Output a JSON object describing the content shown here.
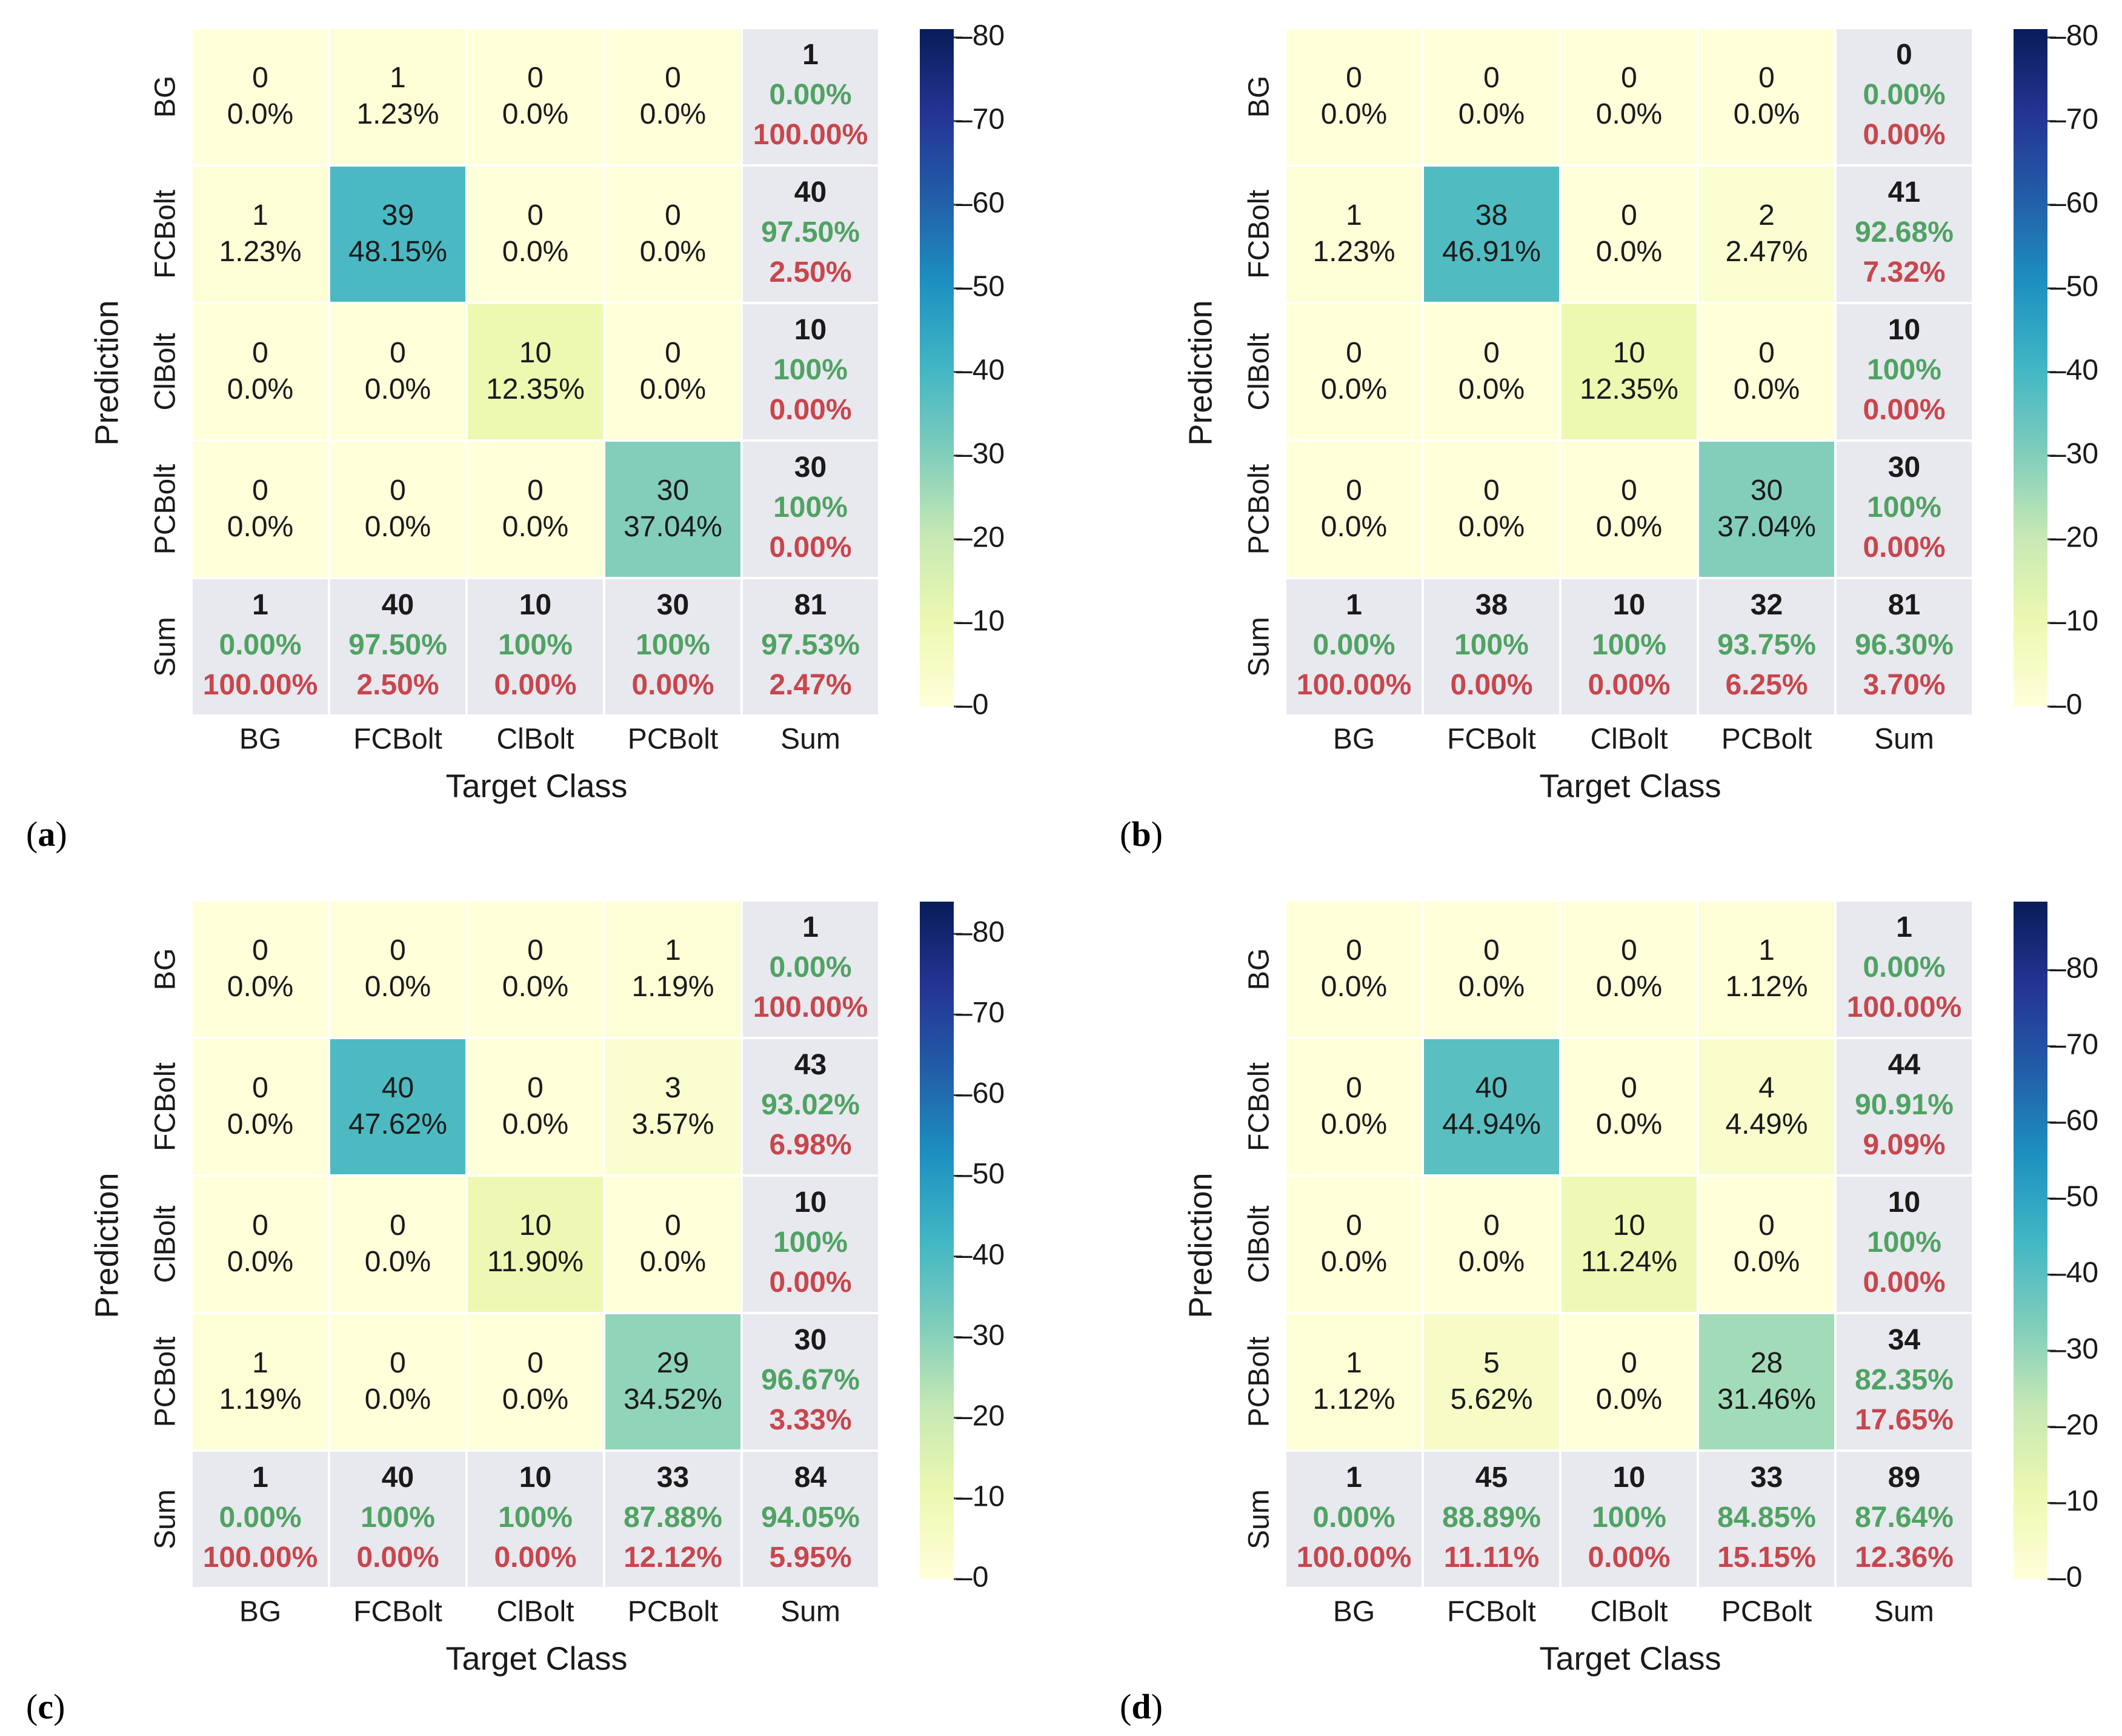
{
  "figure_kind": "confusion-matrix-grid",
  "colors": {
    "bold_count": "#1a1a1a",
    "cell_text": "#1a1a1a",
    "green": "#4fa362",
    "red": "#c8464c",
    "summary_bg": "#e8e8ef",
    "gridline": "#ffffff"
  },
  "colormap": "YlGnBu",
  "chart_data": [
    {
      "type": "heatmap",
      "panel_label": "(a)",
      "panel_letter": "a",
      "xlabel": "Target Class",
      "ylabel": "Prediction",
      "classes": [
        "BG",
        "FCBolt",
        "ClBolt",
        "PCBolt"
      ],
      "sum_label": "Sum",
      "counts": [
        [
          0,
          1,
          0,
          0
        ],
        [
          1,
          39,
          0,
          0
        ],
        [
          0,
          0,
          10,
          0
        ],
        [
          0,
          0,
          0,
          30
        ]
      ],
      "pcts": [
        [
          "0.0%",
          "1.23%",
          "0.0%",
          "0.0%"
        ],
        [
          "1.23%",
          "48.15%",
          "0.0%",
          "0.0%"
        ],
        [
          "0.0%",
          "0.0%",
          "12.35%",
          "0.0%"
        ],
        [
          "0.0%",
          "0.0%",
          "0.0%",
          "37.04%"
        ]
      ],
      "row_sums": [
        {
          "count": 1,
          "green": "0.00%",
          "red": "100.00%"
        },
        {
          "count": 40,
          "green": "97.50%",
          "red": "2.50%"
        },
        {
          "count": 10,
          "green": "100%",
          "red": "0.00%"
        },
        {
          "count": 30,
          "green": "100%",
          "red": "0.00%"
        }
      ],
      "col_sums": [
        {
          "count": 1,
          "green": "0.00%",
          "red": "100.00%"
        },
        {
          "count": 40,
          "green": "97.50%",
          "red": "2.50%"
        },
        {
          "count": 10,
          "green": "100%",
          "red": "0.00%"
        },
        {
          "count": 30,
          "green": "100%",
          "red": "0.00%"
        }
      ],
      "total": {
        "count": 81,
        "green": "97.53%",
        "red": "2.47%"
      },
      "colorbar": {
        "min": 0,
        "max": 81,
        "ticks": [
          0,
          10,
          20,
          30,
          40,
          50,
          60,
          70,
          80
        ]
      }
    },
    {
      "type": "heatmap",
      "panel_label": "(b)",
      "panel_letter": "b",
      "xlabel": "Target Class",
      "ylabel": "Prediction",
      "classes": [
        "BG",
        "FCBolt",
        "ClBolt",
        "PCBolt"
      ],
      "sum_label": "Sum",
      "counts": [
        [
          0,
          0,
          0,
          0
        ],
        [
          1,
          38,
          0,
          2
        ],
        [
          0,
          0,
          10,
          0
        ],
        [
          0,
          0,
          0,
          30
        ]
      ],
      "pcts": [
        [
          "0.0%",
          "0.0%",
          "0.0%",
          "0.0%"
        ],
        [
          "1.23%",
          "46.91%",
          "0.0%",
          "2.47%"
        ],
        [
          "0.0%",
          "0.0%",
          "12.35%",
          "0.0%"
        ],
        [
          "0.0%",
          "0.0%",
          "0.0%",
          "37.04%"
        ]
      ],
      "row_sums": [
        {
          "count": 0,
          "green": "0.00%",
          "red": "0.00%"
        },
        {
          "count": 41,
          "green": "92.68%",
          "red": "7.32%"
        },
        {
          "count": 10,
          "green": "100%",
          "red": "0.00%"
        },
        {
          "count": 30,
          "green": "100%",
          "red": "0.00%"
        }
      ],
      "col_sums": [
        {
          "count": 1,
          "green": "0.00%",
          "red": "100.00%"
        },
        {
          "count": 38,
          "green": "100%",
          "red": "0.00%"
        },
        {
          "count": 10,
          "green": "100%",
          "red": "0.00%"
        },
        {
          "count": 32,
          "green": "93.75%",
          "red": "6.25%"
        }
      ],
      "total": {
        "count": 81,
        "green": "96.30%",
        "red": "3.70%"
      },
      "colorbar": {
        "min": 0,
        "max": 81,
        "ticks": [
          0,
          10,
          20,
          30,
          40,
          50,
          60,
          70,
          80
        ]
      }
    },
    {
      "type": "heatmap",
      "panel_label": "(c)",
      "panel_letter": "c",
      "xlabel": "Target Class",
      "ylabel": "Prediction",
      "classes": [
        "BG",
        "FCBolt",
        "ClBolt",
        "PCBolt"
      ],
      "sum_label": "Sum",
      "counts": [
        [
          0,
          0,
          0,
          1
        ],
        [
          0,
          40,
          0,
          3
        ],
        [
          0,
          0,
          10,
          0
        ],
        [
          1,
          0,
          0,
          29
        ]
      ],
      "pcts": [
        [
          "0.0%",
          "0.0%",
          "0.0%",
          "1.19%"
        ],
        [
          "0.0%",
          "47.62%",
          "0.0%",
          "3.57%"
        ],
        [
          "0.0%",
          "0.0%",
          "11.90%",
          "0.0%"
        ],
        [
          "1.19%",
          "0.0%",
          "0.0%",
          "34.52%"
        ]
      ],
      "row_sums": [
        {
          "count": 1,
          "green": "0.00%",
          "red": "100.00%"
        },
        {
          "count": 43,
          "green": "93.02%",
          "red": "6.98%"
        },
        {
          "count": 10,
          "green": "100%",
          "red": "0.00%"
        },
        {
          "count": 30,
          "green": "96.67%",
          "red": "3.33%"
        }
      ],
      "col_sums": [
        {
          "count": 1,
          "green": "0.00%",
          "red": "100.00%"
        },
        {
          "count": 40,
          "green": "100%",
          "red": "0.00%"
        },
        {
          "count": 10,
          "green": "100%",
          "red": "0.00%"
        },
        {
          "count": 33,
          "green": "87.88%",
          "red": "12.12%"
        }
      ],
      "total": {
        "count": 84,
        "green": "94.05%",
        "red": "5.95%"
      },
      "colorbar": {
        "min": 0,
        "max": 84,
        "ticks": [
          0,
          10,
          20,
          30,
          40,
          50,
          60,
          70,
          80
        ]
      }
    },
    {
      "type": "heatmap",
      "panel_label": "(d)",
      "panel_letter": "d",
      "xlabel": "Target Class",
      "ylabel": "Prediction",
      "classes": [
        "BG",
        "FCBolt",
        "ClBolt",
        "PCBolt"
      ],
      "sum_label": "Sum",
      "counts": [
        [
          0,
          0,
          0,
          1
        ],
        [
          0,
          40,
          0,
          4
        ],
        [
          0,
          0,
          10,
          0
        ],
        [
          1,
          5,
          0,
          28
        ]
      ],
      "pcts": [
        [
          "0.0%",
          "0.0%",
          "0.0%",
          "1.12%"
        ],
        [
          "0.0%",
          "44.94%",
          "0.0%",
          "4.49%"
        ],
        [
          "0.0%",
          "0.0%",
          "11.24%",
          "0.0%"
        ],
        [
          "1.12%",
          "5.62%",
          "0.0%",
          "31.46%"
        ]
      ],
      "row_sums": [
        {
          "count": 1,
          "green": "0.00%",
          "red": "100.00%"
        },
        {
          "count": 44,
          "green": "90.91%",
          "red": "9.09%"
        },
        {
          "count": 10,
          "green": "100%",
          "red": "0.00%"
        },
        {
          "count": 34,
          "green": "82.35%",
          "red": "17.65%"
        }
      ],
      "col_sums": [
        {
          "count": 1,
          "green": "0.00%",
          "red": "100.00%"
        },
        {
          "count": 45,
          "green": "88.89%",
          "red": "11.11%"
        },
        {
          "count": 10,
          "green": "100%",
          "red": "0.00%"
        },
        {
          "count": 33,
          "green": "84.85%",
          "red": "15.15%"
        }
      ],
      "total": {
        "count": 89,
        "green": "87.64%",
        "red": "12.36%"
      },
      "colorbar": {
        "min": 0,
        "max": 89,
        "ticks": [
          0,
          10,
          20,
          30,
          40,
          50,
          60,
          70,
          80
        ]
      }
    }
  ]
}
